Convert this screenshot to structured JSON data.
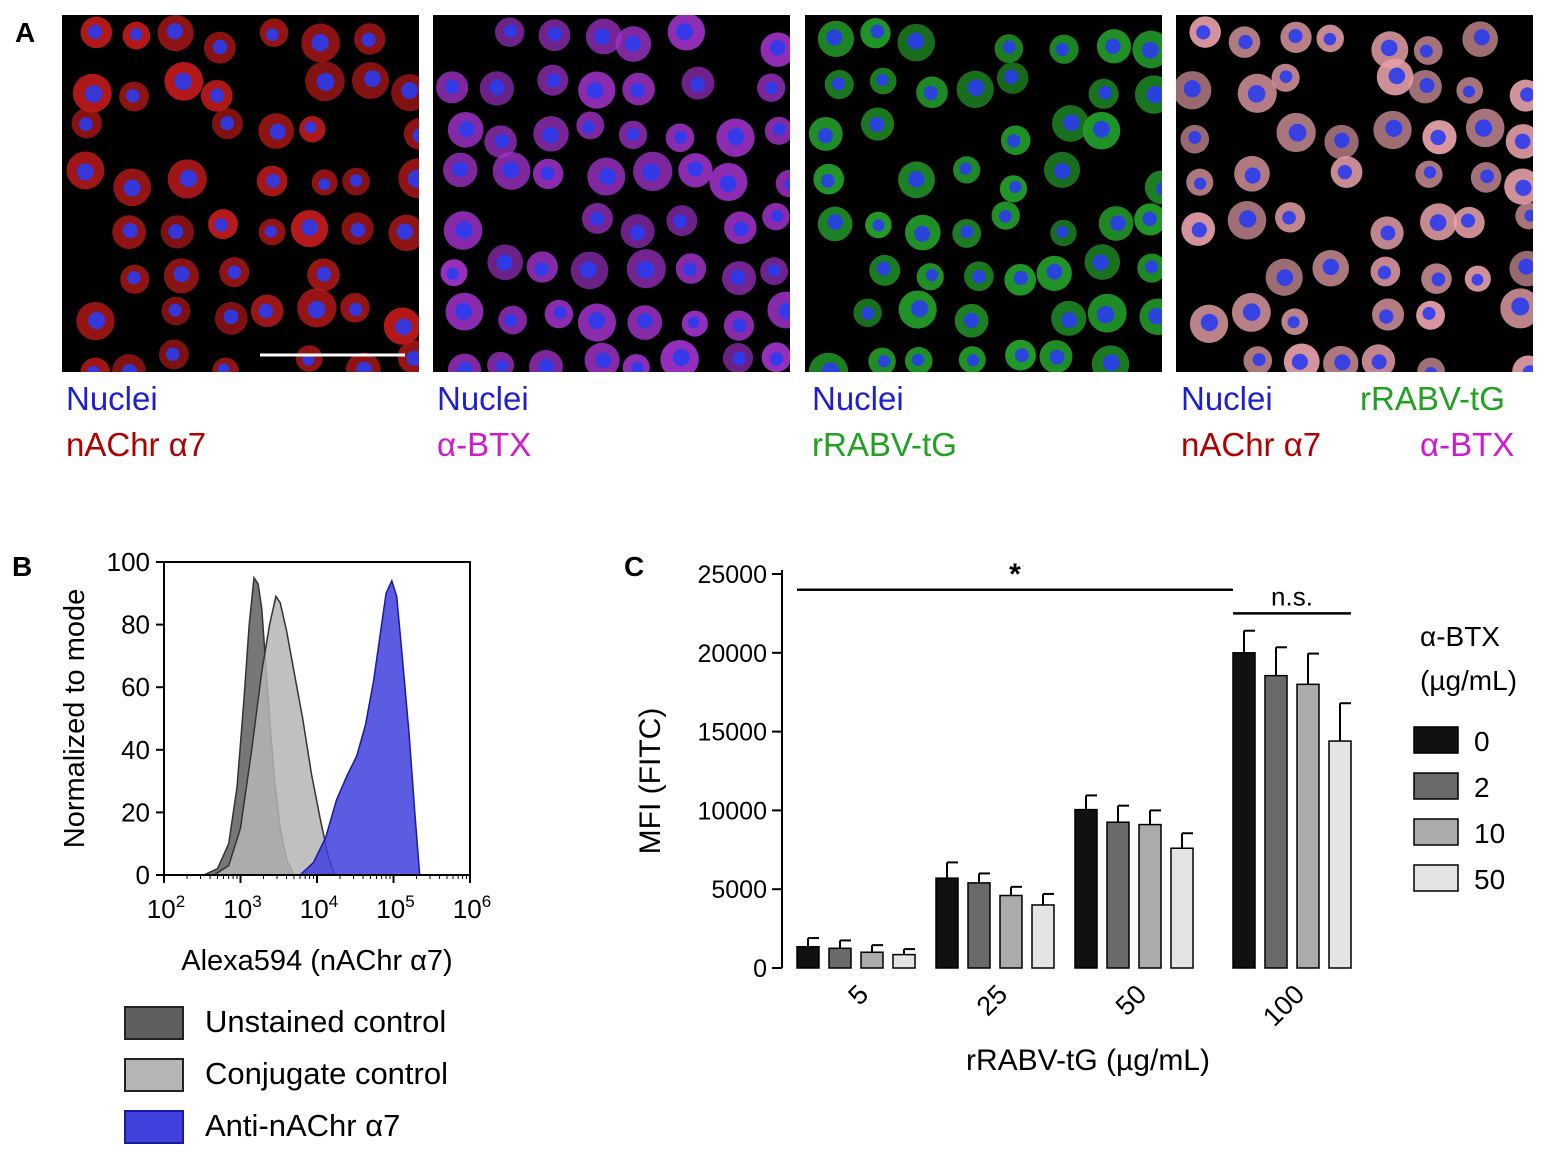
{
  "panel_labels": {
    "a": "A",
    "b": "B",
    "c": "C"
  },
  "micrographs": [
    {
      "labels": [
        {
          "text": "Nuclei",
          "color": "#1f1fd0"
        },
        {
          "text": "nAChr α7",
          "color": "#b00000"
        }
      ],
      "cytoplasm_color": "#c01a1a"
    },
    {
      "labels": [
        {
          "text": "Nuclei",
          "color": "#1f1fd0"
        },
        {
          "text": "α-BTX",
          "color": "#d119d1"
        }
      ],
      "cytoplasm_color": "#a032c8"
    },
    {
      "labels": [
        {
          "text": "Nuclei",
          "color": "#1f1fd0"
        },
        {
          "text": "rRABV-tG",
          "color": "#21a121"
        }
      ],
      "cytoplasm_color": "#23a02a"
    },
    {
      "labels": [
        {
          "text": "Nuclei",
          "color": "#1f1fd0"
        },
        {
          "text": "rRABV-tG",
          "color": "#21a121"
        },
        {
          "text": "nAChr α7",
          "color": "#b00000"
        },
        {
          "text": "α-BTX",
          "color": "#d119d1"
        }
      ],
      "cytoplasm_color": "#e6a0a8"
    }
  ],
  "chart_data": [
    {
      "type": "area",
      "panel": "B",
      "title": "",
      "xlabel": "Alexa594 (nAChr α7)",
      "ylabel": "Normalized to mode",
      "x_scale": "log",
      "xlim": [
        100,
        1000000
      ],
      "ylim": [
        0,
        100
      ],
      "x_ticks": [
        {
          "base": "10",
          "exp": "2"
        },
        {
          "base": "10",
          "exp": "3"
        },
        {
          "base": "10",
          "exp": "4"
        },
        {
          "base": "10",
          "exp": "5"
        },
        {
          "base": "10",
          "exp": "6"
        }
      ],
      "y_ticks": [
        "0",
        "20",
        "40",
        "60",
        "80",
        "100"
      ],
      "series": [
        {
          "name": "Unstained control",
          "color": "#5f5f5f",
          "x": [
            330,
            500,
            700,
            900,
            1100,
            1300,
            1500,
            1700,
            1900,
            2100,
            2400,
            2800,
            3300,
            4000,
            5000
          ],
          "y": [
            0,
            2,
            10,
            28,
            55,
            80,
            95,
            93,
            85,
            70,
            50,
            30,
            15,
            5,
            0
          ]
        },
        {
          "name": "Conjugate control",
          "color": "#b5b5b5",
          "x": [
            450,
            700,
            1000,
            1400,
            1900,
            2400,
            2900,
            3300,
            4000,
            5000,
            6500,
            8500,
            11000,
            14000,
            17000
          ],
          "y": [
            0,
            3,
            15,
            40,
            65,
            80,
            89,
            87,
            78,
            65,
            50,
            32,
            18,
            6,
            0
          ]
        },
        {
          "name": "Anti-nAChr α7",
          "color": "#4040dd",
          "x": [
            6000,
            9000,
            13000,
            18000,
            25000,
            33000,
            43000,
            55000,
            68000,
            80000,
            95000,
            110000,
            130000,
            160000,
            190000,
            220000
          ],
          "y": [
            0,
            4,
            12,
            24,
            32,
            38,
            48,
            62,
            78,
            90,
            94,
            89,
            70,
            45,
            20,
            0
          ]
        }
      ],
      "legend": [
        {
          "label": "Unstained control",
          "color": "#5f5f5f"
        },
        {
          "label": "Conjugate control",
          "color": "#b5b5b5"
        },
        {
          "label": "Anti-nAChr α7",
          "color": "#4040dd"
        }
      ]
    },
    {
      "type": "bar",
      "panel": "C",
      "title": "",
      "xlabel": "rRABV-tG (µg/mL)",
      "ylabel": "MFI (FITC)",
      "ylim": [
        0,
        25000
      ],
      "y_ticks": [
        "0",
        "5000",
        "10000",
        "15000",
        "20000",
        "25000"
      ],
      "categories": [
        "5",
        "25",
        "50",
        "100"
      ],
      "legend_title": [
        "α-BTX",
        "(µg/mL)"
      ],
      "series": [
        {
          "name": "0",
          "color": "#111111",
          "values": [
            1350,
            5700,
            10050,
            20000
          ],
          "errors": [
            550,
            1000,
            900,
            1400
          ]
        },
        {
          "name": "2",
          "color": "#6a6a6a",
          "values": [
            1250,
            5400,
            9250,
            18550
          ],
          "errors": [
            500,
            600,
            1050,
            1800
          ]
        },
        {
          "name": "10",
          "color": "#ababab",
          "values": [
            1000,
            4600,
            9100,
            18000
          ],
          "errors": [
            450,
            550,
            900,
            1950
          ]
        },
        {
          "name": "50",
          "color": "#e4e4e4",
          "values": [
            850,
            4000,
            7600,
            14400
          ],
          "errors": [
            350,
            700,
            950,
            2400
          ]
        }
      ],
      "annotations": [
        {
          "text": "*",
          "from_category": "5",
          "to_category": "100",
          "level": 24000
        },
        {
          "text": "n.s.",
          "from_category": "100",
          "to_category": "100",
          "level": 22500
        }
      ]
    }
  ]
}
